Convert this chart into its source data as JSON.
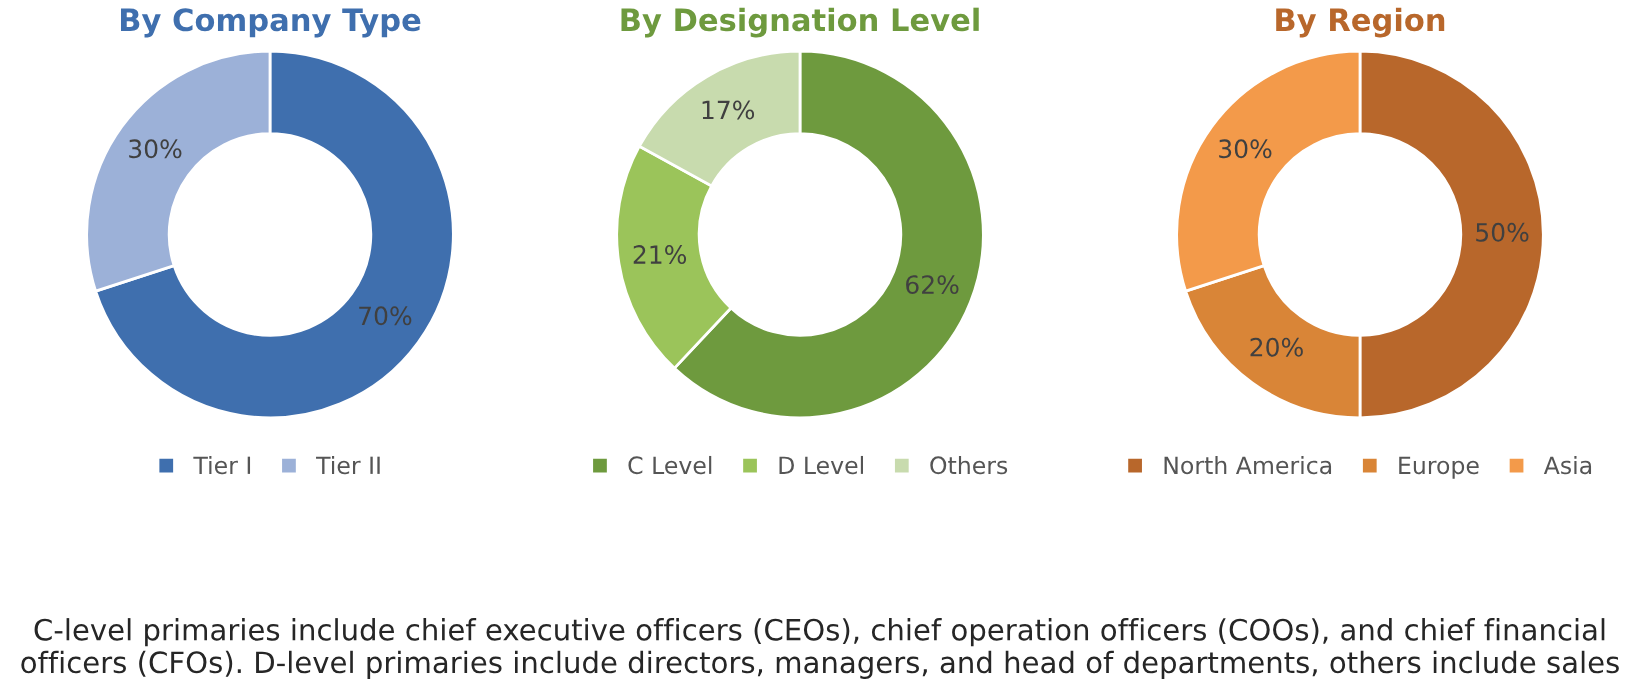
{
  "chart_data": [
    {
      "type": "donut",
      "title": "By Company Type",
      "categories": [
        "Tier I",
        "Tier II"
      ],
      "values": [
        70,
        30
      ],
      "value_labels": [
        "70%",
        "30%"
      ],
      "colors": [
        "#3f6fae",
        "#9cb1d8"
      ],
      "legend": "bottom"
    },
    {
      "type": "donut",
      "title": "By Designation Level",
      "categories": [
        "C Level",
        "D Level",
        "Others"
      ],
      "values": [
        62,
        21,
        17
      ],
      "value_labels": [
        "62%",
        "21%",
        "17%"
      ],
      "colors": [
        "#6e9a3e",
        "#9bc45a",
        "#c8dbae"
      ],
      "legend": "bottom"
    },
    {
      "type": "donut",
      "title": "By Region",
      "categories": [
        "North America",
        "Europe",
        "Asia"
      ],
      "values": [
        50,
        20,
        30
      ],
      "value_labels": [
        "50%",
        "20%",
        "30%"
      ],
      "colors": [
        "#b8672b",
        "#d98537",
        "#f39a4a"
      ],
      "legend": "bottom",
      "annotations": [
        "C-level primaries include chief executive officers (CEOs), chief operation officers (COOs), and chief financial officers (CFOs). D-level primaries include directors, managers, and head of departments, others include sales"
      ]
    }
  ]
}
